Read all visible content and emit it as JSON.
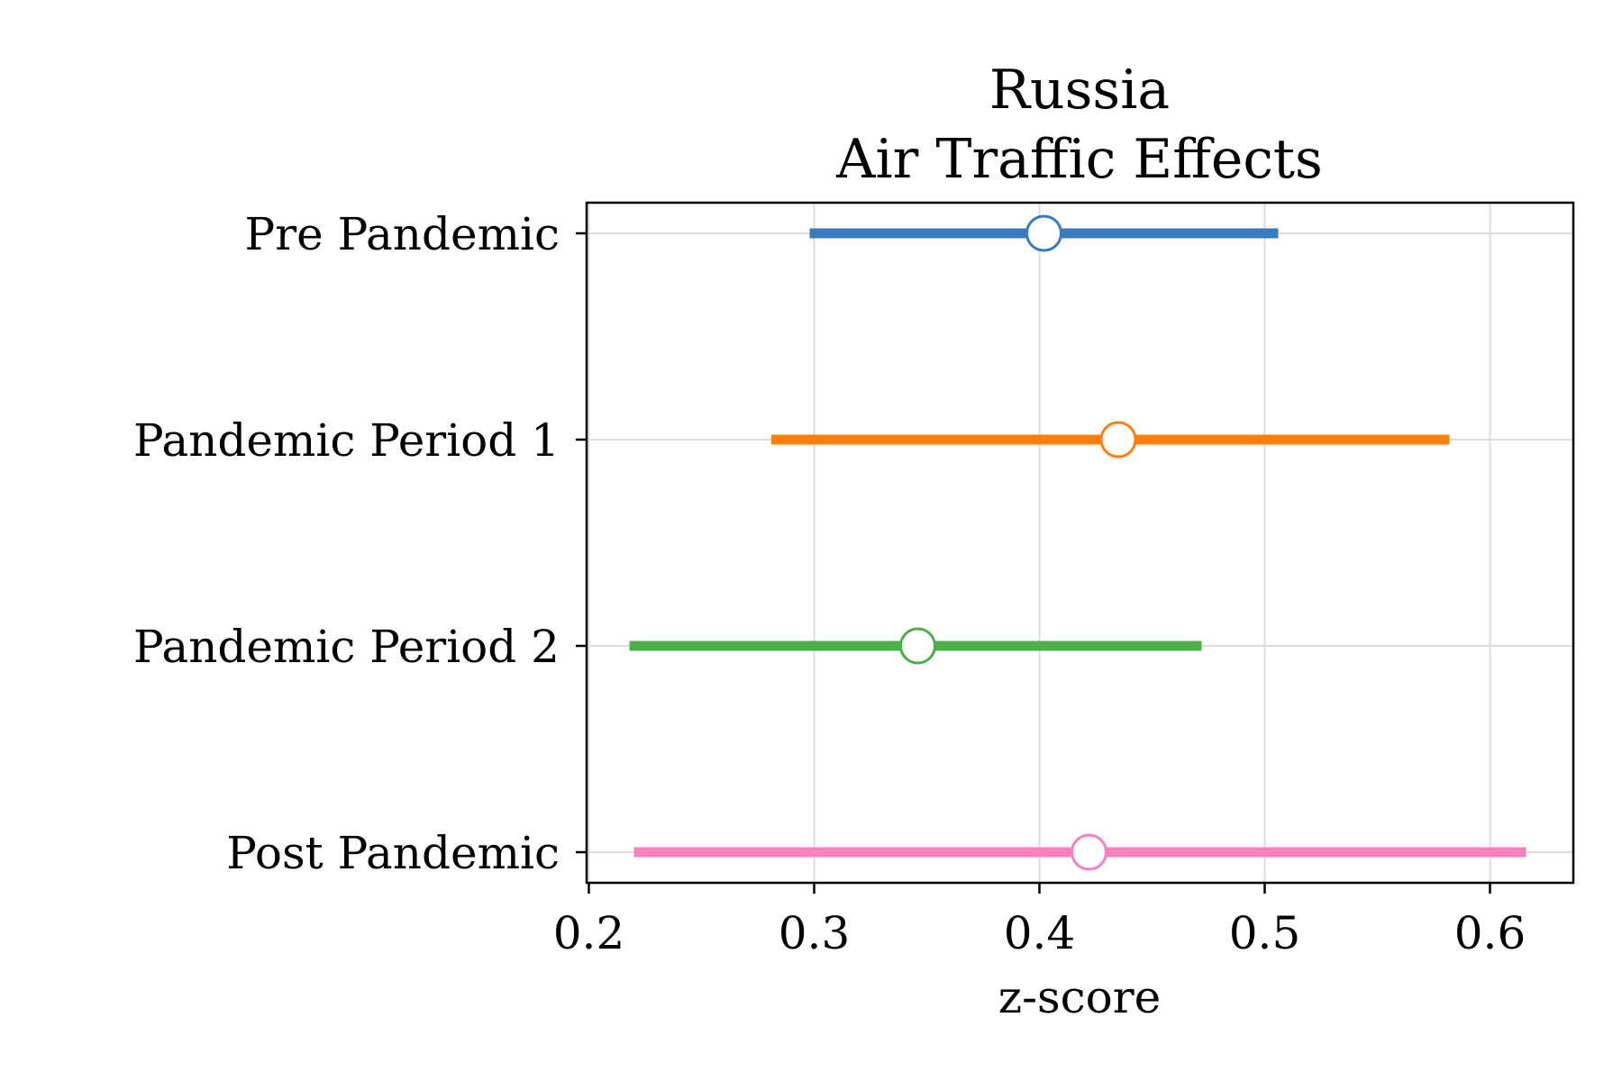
{
  "chart_data": {
    "type": "errorbar",
    "title": [
      "Russia",
      "Air Traffic Effects"
    ],
    "xlabel": "z-score",
    "ylabel": "",
    "xlim": [
      0.199,
      0.637
    ],
    "xticks": [
      0.2,
      0.3,
      0.4,
      0.5,
      0.6
    ],
    "xtick_labels": [
      "0.2",
      "0.3",
      "0.4",
      "0.5",
      "0.6"
    ],
    "grid": true,
    "categories": [
      "Pre Pandemic",
      "Pandemic Period 1",
      "Pandemic Period 2",
      "Post Pandemic"
    ],
    "series": [
      {
        "category": "Pre Pandemic",
        "estimate": 0.402,
        "lower": 0.298,
        "upper": 0.506,
        "color": "#3a7bbf"
      },
      {
        "category": "Pandemic Period 1",
        "estimate": 0.435,
        "lower": 0.281,
        "upper": 0.582,
        "color": "#ff7f0e"
      },
      {
        "category": "Pandemic Period 2",
        "estimate": 0.346,
        "lower": 0.218,
        "upper": 0.472,
        "color": "#4daf4a"
      },
      {
        "category": "Post Pandemic",
        "estimate": 0.422,
        "lower": 0.22,
        "upper": 0.616,
        "color": "#f781bf"
      }
    ]
  }
}
